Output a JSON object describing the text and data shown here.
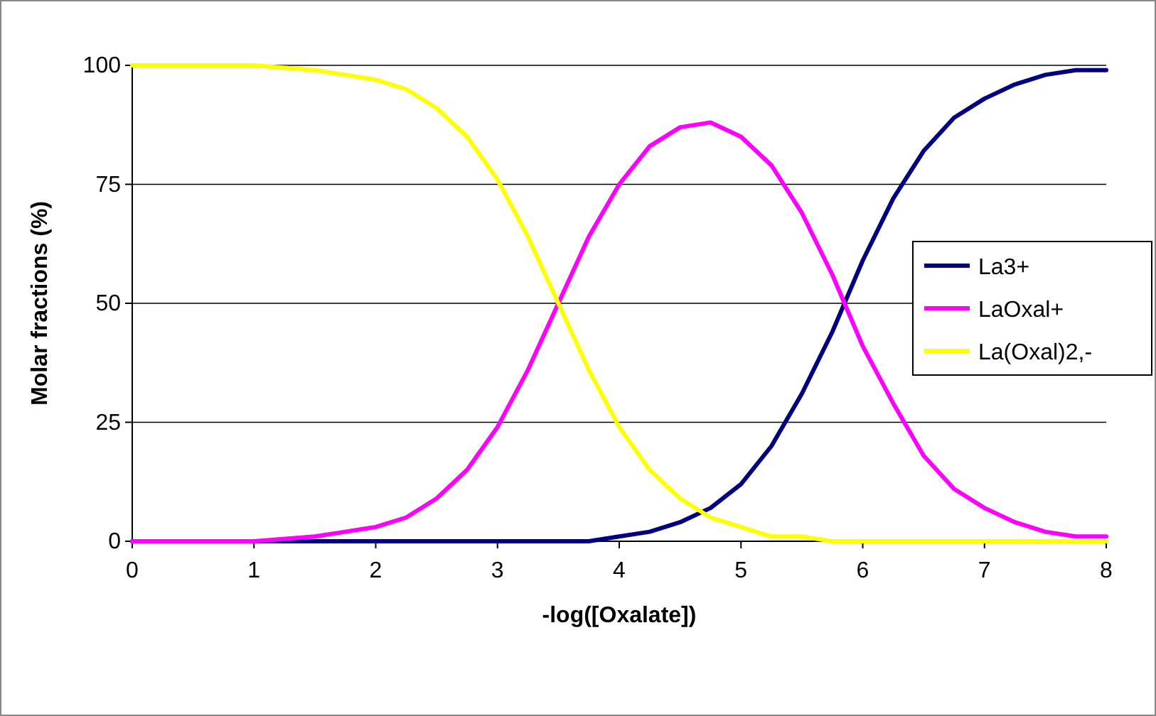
{
  "chart_data": {
    "type": "line",
    "xlabel": "-log([Oxalate])",
    "ylabel": "Molar fractions (%)",
    "x": [
      0,
      0.5,
      1,
      1.5,
      1.75,
      2,
      2.25,
      2.5,
      2.75,
      3,
      3.25,
      3.5,
      3.75,
      4,
      4.25,
      4.5,
      4.75,
      5,
      5.25,
      5.5,
      5.75,
      6,
      6.25,
      6.5,
      6.75,
      7,
      7.25,
      7.5,
      7.75,
      8
    ],
    "series": [
      {
        "name": "La3+",
        "color": "#000080",
        "values": [
          0,
          0,
          0,
          0,
          0,
          0,
          0,
          0,
          0,
          0,
          0,
          0,
          0,
          1,
          2,
          4,
          7,
          12,
          20,
          31,
          44,
          59,
          72,
          82,
          89,
          93,
          96,
          98,
          99,
          99
        ]
      },
      {
        "name": "LaOxal+",
        "color": "#ff00ff",
        "values": [
          0,
          0,
          0,
          1,
          2,
          3,
          5,
          9,
          15,
          24,
          36,
          50,
          64,
          75,
          83,
          87,
          88,
          85,
          79,
          69,
          56,
          41,
          29,
          18,
          11,
          7,
          4,
          2,
          1,
          1
        ]
      },
      {
        "name": "La(Oxal)2,-",
        "color": "#ffff00",
        "values": [
          100,
          100,
          100,
          99,
          98,
          97,
          95,
          91,
          85,
          76,
          64,
          50,
          36,
          24,
          15,
          9,
          5,
          3,
          1,
          1,
          0,
          0,
          0,
          0,
          0,
          0,
          0,
          0,
          0,
          0
        ]
      }
    ],
    "xlim": [
      0,
      8
    ],
    "xticks": [
      0,
      1,
      2,
      3,
      4,
      5,
      6,
      7,
      8
    ],
    "ylim": [
      0,
      100
    ],
    "yticks": [
      0,
      25,
      50,
      75,
      100
    ],
    "grid": "y",
    "legend": "right",
    "marker": "none",
    "line_style": "solid"
  }
}
